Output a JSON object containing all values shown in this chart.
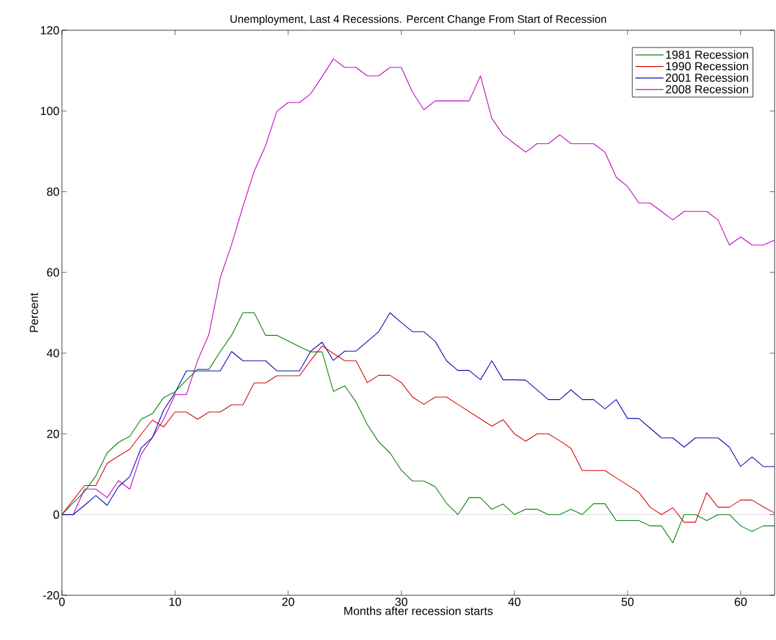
{
  "chart_data": {
    "type": "line",
    "title": "Unemployment, Last 4 Recessions.  Percent Change From Start of Recession",
    "xlabel": "Months after recession starts",
    "ylabel": "Percent",
    "x": [
      0,
      1,
      2,
      3,
      4,
      5,
      6,
      7,
      8,
      9,
      10,
      11,
      12,
      13,
      14,
      15,
      16,
      17,
      18,
      19,
      20,
      21,
      22,
      23,
      24,
      25,
      26,
      27,
      28,
      29,
      30,
      31,
      32,
      33,
      34,
      35,
      36,
      37,
      38,
      39,
      40,
      41,
      42,
      43,
      44,
      45,
      46,
      47,
      48,
      49,
      50,
      51,
      52,
      53,
      54,
      55,
      56,
      57,
      58,
      59,
      60,
      61,
      62,
      63
    ],
    "series": [
      {
        "name": "1981 Recession",
        "color": "#007f00",
        "values": [
          0,
          2.9,
          5.7,
          9.6,
          15.3,
          17.9,
          19.4,
          23.6,
          25,
          29,
          30.4,
          33.3,
          36,
          36,
          40.4,
          44.4,
          50,
          50,
          44.4,
          44.4,
          43,
          41.6,
          40.3,
          40.3,
          30.5,
          31.9,
          27.9,
          22.3,
          18,
          15.3,
          11,
          8.3,
          8.3,
          6.9,
          2.8,
          0,
          4.2,
          4.2,
          1.3,
          2.6,
          0,
          1.3,
          1.3,
          0,
          0,
          1.3,
          0,
          2.7,
          2.7,
          -1.5,
          -1.5,
          -1.5,
          -2.8,
          -2.8,
          -7,
          0,
          0,
          -1.5,
          0,
          0,
          -2.8,
          -4.2,
          -2.8,
          -2.8
        ]
      },
      {
        "name": "1990 Recession",
        "color": "#d40000",
        "values": [
          0,
          3.6,
          7.2,
          7.2,
          12.7,
          14.5,
          16.2,
          19.9,
          23.4,
          21.7,
          25.4,
          25.4,
          23.6,
          25.4,
          25.4,
          27.2,
          27.2,
          32.6,
          32.6,
          34.4,
          34.4,
          34.4,
          38.2,
          41.8,
          39.9,
          38.1,
          38.1,
          32.7,
          34.5,
          34.5,
          32.7,
          29.1,
          27.3,
          29.1,
          29.1,
          27.3,
          25.5,
          23.7,
          21.9,
          23.5,
          20,
          18.2,
          20,
          20,
          18.3,
          16.4,
          10.9,
          10.9,
          10.9,
          9.1,
          7.3,
          5.5,
          1.8,
          0,
          1.7,
          -1.9,
          -1.9,
          5.4,
          1.8,
          1.8,
          3.6,
          3.6,
          1.9,
          0.4
        ]
      },
      {
        "name": "2001 Recession",
        "color": "#0000b4",
        "values": [
          0,
          0,
          2.3,
          4.7,
          2.3,
          6.9,
          9.4,
          16.5,
          19.1,
          25.9,
          30.2,
          35.6,
          35.6,
          35.6,
          35.6,
          40.4,
          38.1,
          38.1,
          38.1,
          35.6,
          35.6,
          35.6,
          40.5,
          42.7,
          38.2,
          40.5,
          40.5,
          42.9,
          45.3,
          50,
          47.6,
          45.3,
          45.3,
          42.9,
          38.1,
          35.7,
          35.7,
          33.4,
          38.1,
          33.4,
          33.4,
          33.3,
          30.9,
          28.5,
          28.5,
          30.9,
          28.5,
          28.5,
          26.2,
          28.5,
          23.8,
          23.8,
          21.4,
          19,
          19,
          16.7,
          19,
          19,
          19,
          16.7,
          11.9,
          14.3,
          11.9,
          11.9
        ]
      },
      {
        "name": "2008 Recession",
        "color": "#bf00bf",
        "values": [
          0,
          0,
          6.3,
          6.3,
          4.2,
          8.4,
          6.3,
          14.9,
          19.1,
          23.6,
          29.7,
          29.7,
          38.2,
          44.7,
          58.7,
          66.9,
          76.3,
          85.1,
          91.4,
          99.9,
          102.1,
          102.1,
          104.3,
          108.5,
          112.9,
          110.8,
          110.8,
          108.7,
          108.7,
          110.8,
          110.8,
          104.6,
          100.3,
          102.5,
          102.5,
          102.5,
          102.5,
          108.7,
          98.2,
          94.1,
          91.9,
          89.8,
          91.9,
          91.9,
          94.1,
          91.9,
          91.9,
          91.9,
          89.8,
          83.6,
          81.3,
          77.2,
          77.2,
          75.1,
          73,
          75.1,
          75.1,
          75.1,
          73,
          66.8,
          68.8,
          66.8,
          66.8,
          68
        ]
      }
    ],
    "xlim": [
      0,
      63
    ],
    "ylim": [
      -20,
      120
    ],
    "xticks": [
      0,
      10,
      20,
      30,
      40,
      50,
      60
    ],
    "yticks": [
      -20,
      0,
      20,
      40,
      60,
      80,
      100,
      120
    ],
    "ref_lines": [
      {
        "axis": "y",
        "value": 0,
        "color": "#000000",
        "line_style": "dotted"
      }
    ],
    "legend": "top right",
    "line_style": "solid",
    "grid": false
  }
}
